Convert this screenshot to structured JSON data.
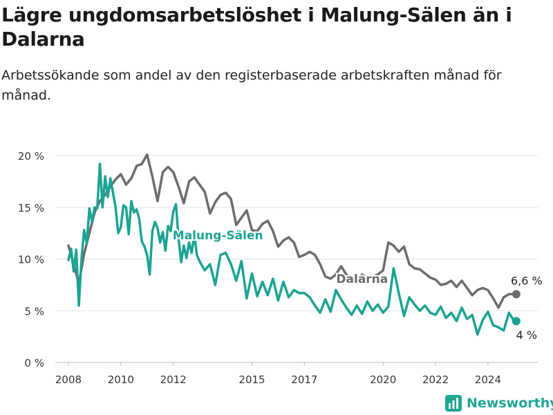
{
  "header": {
    "title": "Lägre ungdomsarbetslöshet i Malung-Sälen än i Dalarna",
    "subtitle": "Arbetssökande som andel av den registerbaserade arbetskraften månad för månad."
  },
  "brand": {
    "name": "Newsworthy",
    "icon": "newsworthy-logo-icon",
    "color": "#20a593"
  },
  "chart_data": {
    "type": "line",
    "x_unit": "year",
    "ylim": [
      0,
      20
    ],
    "xlim": [
      2007.5,
      2025.9
    ],
    "y_ticks": [
      0,
      5,
      10,
      15,
      20
    ],
    "y_tick_labels": [
      "0 %",
      "5 %",
      "10 %",
      "15 %",
      "20 %"
    ],
    "x_ticks": [
      2008,
      2010,
      2012,
      2015,
      2017,
      2020,
      2022,
      2024
    ],
    "x_tick_labels": [
      "2008",
      "2010",
      "2012",
      "2015",
      "2017",
      "2020",
      "2022",
      "2024"
    ],
    "grid": true,
    "series": [
      {
        "name": "Dalarna",
        "color": "#6b6b70",
        "end_label": "6,6 %",
        "x": [
          2008.0,
          2008.2,
          2008.4,
          2008.6,
          2008.8,
          2009.0,
          2009.2,
          2009.4,
          2009.6,
          2009.8,
          2010.0,
          2010.2,
          2010.4,
          2010.6,
          2010.8,
          2011.0,
          2011.2,
          2011.4,
          2011.6,
          2011.8,
          2012.0,
          2012.2,
          2012.4,
          2012.6,
          2012.8,
          2013.0,
          2013.2,
          2013.4,
          2013.6,
          2013.8,
          2014.0,
          2014.2,
          2014.4,
          2014.6,
          2014.8,
          2015.0,
          2015.2,
          2015.4,
          2015.6,
          2015.8,
          2016.0,
          2016.2,
          2016.4,
          2016.6,
          2016.8,
          2017.0,
          2017.2,
          2017.4,
          2017.6,
          2017.8,
          2018.0,
          2018.2,
          2018.4,
          2018.6,
          2018.8,
          2019.0,
          2019.2,
          2019.4,
          2019.6,
          2019.8,
          2020.0,
          2020.2,
          2020.4,
          2020.6,
          2020.8,
          2021.0,
          2021.2,
          2021.4,
          2021.6,
          2021.8,
          2022.0,
          2022.2,
          2022.4,
          2022.6,
          2022.8,
          2023.0,
          2023.2,
          2023.4,
          2023.6,
          2023.8,
          2024.0,
          2024.2,
          2024.4,
          2024.6,
          2024.8,
          2025.0
        ],
        "values": [
          11.3,
          9.5,
          7.6,
          10.5,
          12.5,
          14.5,
          15.6,
          16.2,
          17.0,
          17.7,
          18.2,
          17.2,
          17.8,
          19.0,
          19.2,
          20.1,
          18.0,
          15.6,
          18.4,
          18.9,
          18.4,
          17.0,
          15.4,
          17.5,
          17.9,
          17.2,
          16.5,
          14.4,
          15.5,
          16.2,
          16.4,
          15.8,
          13.3,
          14.0,
          14.7,
          12.8,
          12.7,
          13.4,
          13.7,
          12.7,
          11.2,
          11.8,
          12.1,
          11.6,
          10.2,
          10.4,
          10.7,
          10.4,
          9.5,
          8.3,
          8.1,
          8.5,
          9.3,
          8.5,
          8.0,
          7.9,
          8.5,
          8.1,
          8.3,
          8.5,
          8.9,
          11.6,
          11.3,
          10.7,
          11.2,
          9.5,
          9.1,
          9.0,
          8.6,
          8.2,
          8.0,
          7.5,
          7.6,
          7.9,
          7.3,
          7.9,
          7.2,
          6.5,
          7.0,
          7.2,
          7.0,
          6.2,
          5.3,
          6.3,
          6.6,
          6.6
        ]
      },
      {
        "name": "Malung-Sälen",
        "color": "#1ca392",
        "end_label": "4 %",
        "x": [
          2008.0,
          2008.1,
          2008.2,
          2008.3,
          2008.4,
          2008.5,
          2008.6,
          2008.7,
          2008.8,
          2008.9,
          2009.0,
          2009.1,
          2009.2,
          2009.3,
          2009.4,
          2009.5,
          2009.6,
          2009.7,
          2009.8,
          2009.9,
          2010.0,
          2010.1,
          2010.2,
          2010.3,
          2010.4,
          2010.5,
          2010.6,
          2010.7,
          2010.8,
          2010.9,
          2011.0,
          2011.1,
          2011.2,
          2011.3,
          2011.4,
          2011.5,
          2011.6,
          2011.7,
          2011.8,
          2011.9,
          2012.0,
          2012.1,
          2012.2,
          2012.3,
          2012.4,
          2012.5,
          2012.6,
          2012.7,
          2012.8,
          2012.9,
          2013.0,
          2013.2,
          2013.4,
          2013.6,
          2013.8,
          2014.0,
          2014.2,
          2014.4,
          2014.6,
          2014.8,
          2015.0,
          2015.2,
          2015.4,
          2015.6,
          2015.8,
          2016.0,
          2016.2,
          2016.4,
          2016.6,
          2016.8,
          2017.0,
          2017.2,
          2017.4,
          2017.6,
          2017.8,
          2018.0,
          2018.2,
          2018.4,
          2018.6,
          2018.8,
          2019.0,
          2019.2,
          2019.4,
          2019.6,
          2019.8,
          2020.0,
          2020.2,
          2020.4,
          2020.6,
          2020.8,
          2021.0,
          2021.2,
          2021.4,
          2021.6,
          2021.8,
          2022.0,
          2022.2,
          2022.4,
          2022.6,
          2022.8,
          2023.0,
          2023.2,
          2023.4,
          2023.6,
          2023.8,
          2024.0,
          2024.2,
          2024.4,
          2024.6,
          2024.8,
          2025.0
        ],
        "values": [
          9.9,
          11.0,
          8.8,
          10.9,
          5.5,
          10.0,
          12.8,
          11.5,
          14.9,
          13.6,
          15.0,
          14.9,
          19.2,
          15.0,
          18.0,
          16.0,
          17.8,
          16.4,
          15.0,
          12.5,
          13.1,
          15.2,
          15.0,
          12.4,
          15.6,
          14.5,
          14.8,
          13.9,
          11.7,
          11.2,
          10.4,
          8.5,
          12.7,
          13.6,
          13.0,
          11.6,
          12.6,
          10.8,
          13.2,
          12.7,
          14.6,
          15.3,
          12.0,
          9.7,
          11.3,
          10.1,
          11.6,
          10.6,
          12.4,
          10.4,
          9.8,
          8.9,
          9.5,
          7.5,
          10.4,
          10.6,
          9.5,
          7.9,
          9.8,
          6.2,
          8.6,
          6.4,
          7.8,
          6.5,
          8.1,
          6.0,
          7.8,
          6.3,
          7.0,
          6.7,
          6.7,
          6.3,
          5.5,
          4.8,
          6.1,
          4.9,
          7.0,
          6.1,
          5.3,
          4.6,
          5.5,
          4.7,
          5.9,
          5.0,
          5.6,
          4.8,
          5.4,
          9.1,
          6.7,
          4.5,
          6.3,
          5.6,
          5.0,
          5.5,
          4.8,
          4.6,
          5.4,
          4.3,
          4.8,
          4.0,
          5.3,
          4.2,
          4.6,
          2.7,
          4.1,
          4.9,
          3.6,
          3.4,
          3.1,
          4.8,
          4.0
        ]
      }
    ],
    "annotations": [
      {
        "text": "Malung-Sälen",
        "series": "Malung-Sälen",
        "x": 2013.7,
        "y": 11.9
      },
      {
        "text": "Dalarna",
        "series": "Dalarna",
        "x": 2019.2,
        "y": 7.7
      }
    ]
  }
}
